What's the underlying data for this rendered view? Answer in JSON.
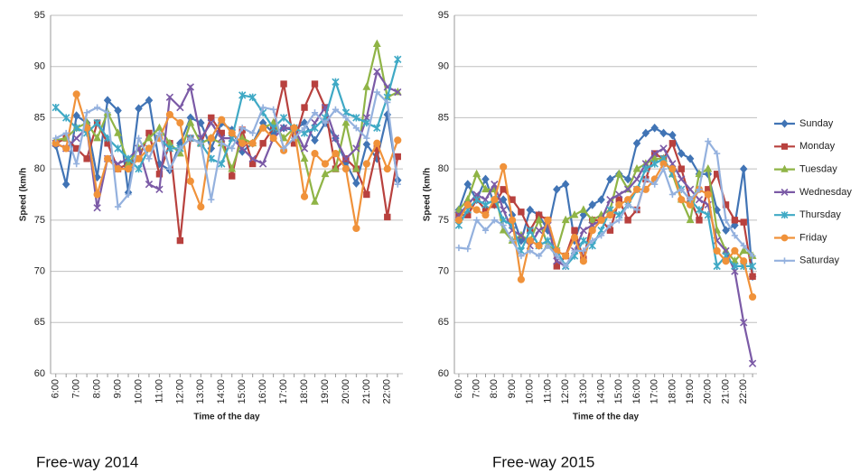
{
  "chart_data": [
    {
      "type": "line",
      "title": "Free-way 2014",
      "x_label": "Time of the day",
      "y_label": "Speed (km/h",
      "categories": [
        "6:00",
        null,
        "7:00",
        null,
        "8:00",
        null,
        "9:00",
        null,
        "10:00",
        null,
        "11:00",
        null,
        "12:00",
        null,
        "13:00",
        null,
        "14:00",
        null,
        "15:00",
        null,
        "16:00",
        null,
        "17:00",
        null,
        "18:00",
        null,
        "19:00",
        null,
        "20:00",
        null,
        "21:00",
        null,
        "22:00",
        null
      ],
      "ylim": [
        60,
        95
      ],
      "yticks": [
        60,
        65,
        70,
        75,
        80,
        85,
        90,
        95
      ],
      "grid": true,
      "series": [
        {
          "color": "#4174b5",
          "marker": "diamond",
          "values": [
            82.3,
            78.5,
            85.2,
            84.5,
            79.2,
            86.7,
            85.7,
            77.7,
            85.9,
            86.7,
            80.5,
            79.9,
            82.5,
            85.0,
            84.5,
            82.0,
            84.5,
            83.8,
            81.7,
            82.5,
            84.5,
            83.5,
            84.0,
            83.8,
            84.5,
            82.8,
            84.5,
            83.0,
            80.6,
            78.6,
            82.4,
            81.0,
            85.3,
            78.9
          ]
        },
        {
          "color": "#b8413e",
          "marker": "square",
          "values": [
            82.5,
            83.0,
            82.0,
            81.0,
            84.5,
            82.5,
            80.0,
            80.5,
            81.0,
            83.5,
            79.5,
            82.5,
            73.0,
            83.0,
            82.5,
            85.0,
            83.5,
            79.3,
            83.8,
            80.5,
            82.5,
            84.0,
            88.3,
            82.5,
            86.0,
            88.3,
            86.0,
            80.0,
            81.0,
            80.0,
            77.5,
            82.0,
            75.3,
            81.2
          ]
        },
        {
          "color": "#8fb446",
          "marker": "triangle",
          "values": [
            82.8,
            83,
            84,
            84.5,
            83,
            85.5,
            83.5,
            80.5,
            82,
            83,
            84,
            82.5,
            81.5,
            84.5,
            82.5,
            83,
            82.5,
            80,
            83,
            82.5,
            84,
            84.5,
            83,
            84,
            81,
            76.8,
            79.5,
            80,
            84.5,
            80,
            88,
            92.2,
            87,
            87.5
          ]
        },
        {
          "color": "#7b5aa6",
          "marker": "x",
          "values": [
            82.5,
            82,
            83,
            84,
            76.2,
            81,
            80.5,
            81,
            82,
            78.5,
            78,
            87,
            86,
            88,
            83,
            84.5,
            83,
            83,
            82,
            81,
            80.5,
            83,
            84,
            84,
            82,
            84.5,
            86,
            83,
            81,
            82,
            85,
            89.5,
            88,
            87.5
          ]
        },
        {
          "color": "#3fa9c5",
          "marker": "star",
          "values": [
            86,
            85,
            84,
            83.5,
            84.5,
            83,
            82,
            81,
            80,
            82,
            83,
            82,
            82,
            83,
            82.5,
            81,
            80.5,
            83,
            87.2,
            87,
            85.5,
            84,
            85,
            84,
            83.5,
            84,
            85,
            88.5,
            85.5,
            85,
            84.5,
            84,
            87,
            90.7
          ]
        },
        {
          "color": "#f0923a",
          "marker": "circle",
          "values": [
            82.5,
            82,
            87.3,
            84,
            77.5,
            81,
            80,
            80,
            81,
            82,
            83,
            85.3,
            84.5,
            78.8,
            76.3,
            83,
            84.8,
            83.5,
            82.5,
            82.5,
            84,
            83,
            81.8,
            84,
            77.3,
            81.5,
            80.5,
            81.5,
            80,
            74.2,
            80.5,
            82.5,
            80,
            82.8
          ]
        },
        {
          "color": "#94b1de",
          "marker": "plus",
          "values": [
            83,
            83.5,
            80.5,
            85.5,
            86,
            85.5,
            76.3,
            77.5,
            83,
            81,
            83.5,
            80,
            82,
            83,
            82.5,
            77,
            82.5,
            82,
            84,
            83.5,
            86,
            85.8,
            82,
            83,
            84,
            85.5,
            84.5,
            85.8,
            85,
            84,
            83,
            87.5,
            86.5,
            78.5
          ]
        }
      ]
    },
    {
      "type": "line",
      "title": "Free-way 2015",
      "x_label": "Time of the day",
      "y_label": "Speed (km/h",
      "categories": [
        "6:00",
        null,
        "7:00",
        null,
        "8:00",
        null,
        "9:00",
        null,
        "10:00",
        null,
        "11:00",
        null,
        "12:00",
        null,
        "13:00",
        null,
        "14:00",
        null,
        "15:00",
        null,
        "16:00",
        null,
        "17:00",
        null,
        "18:00",
        null,
        "19:00",
        null,
        "20:00",
        null,
        "21:00",
        null,
        "22:00",
        null
      ],
      "ylim": [
        60,
        95
      ],
      "yticks": [
        60,
        65,
        70,
        75,
        80,
        85,
        90,
        95
      ],
      "grid": true,
      "legend": "right",
      "series": [
        {
          "name": "Sunday",
          "color": "#4174b5",
          "marker": "diamond",
          "values": [
            76,
            78.5,
            77,
            79,
            76.5,
            77,
            75.5,
            73,
            76,
            75.5,
            74,
            78,
            78.5,
            73,
            75.5,
            76.5,
            77,
            79,
            79.5,
            79,
            82.5,
            83.5,
            84,
            83.5,
            83.3,
            81.5,
            81,
            79.5,
            79.5,
            76,
            74,
            74.5,
            80,
            69.5
          ]
        },
        {
          "name": "Monday",
          "color": "#b8413e",
          "marker": "square",
          "values": [
            75.5,
            75.5,
            77,
            76,
            76.5,
            78,
            77,
            75.8,
            74,
            75.5,
            75,
            70.5,
            71.5,
            74,
            71.2,
            75,
            75,
            74,
            77,
            75,
            76,
            79,
            81.5,
            81,
            82.5,
            80,
            77,
            75,
            78,
            79.5,
            76.5,
            75,
            74.8,
            69.5
          ]
        },
        {
          "name": "Tuesday",
          "color": "#8fb446",
          "marker": "triangle",
          "values": [
            76,
            77,
            79.5,
            78,
            78,
            74,
            73,
            73.5,
            73,
            75,
            72.5,
            72,
            75,
            75.5,
            76,
            75,
            75.5,
            76,
            79.5,
            78,
            80,
            80.5,
            81,
            81,
            79.5,
            77,
            75,
            79.5,
            80,
            74,
            72,
            71,
            72,
            71.5
          ]
        },
        {
          "name": "Wednesday",
          "color": "#7b5aa6",
          "marker": "x",
          "values": [
            75.5,
            76.5,
            77.5,
            77,
            78.5,
            76,
            74,
            73.5,
            72.5,
            74,
            74.5,
            71,
            70.5,
            72,
            74,
            74.5,
            75,
            77,
            77.5,
            78,
            79,
            80.5,
            81.5,
            82,
            80.5,
            79,
            78,
            77,
            76.5,
            73,
            72,
            70,
            65,
            61
          ]
        },
        {
          "name": "Thursday",
          "color": "#3fa9c5",
          "marker": "star",
          "values": [
            74.5,
            76,
            77,
            76.5,
            77,
            75,
            74.5,
            72,
            74,
            72.5,
            73,
            72,
            70.5,
            71.5,
            73,
            72.5,
            74,
            76,
            75.5,
            76.5,
            78,
            80,
            80.5,
            81,
            79.5,
            78,
            77,
            76,
            75.5,
            70.5,
            71.5,
            70.5,
            70.5,
            70.5
          ]
        },
        {
          "name": "Friday",
          "color": "#f0923a",
          "marker": "circle",
          "values": [
            75,
            76.5,
            76,
            75.5,
            77,
            80.2,
            75,
            69.2,
            73,
            72.5,
            75,
            72,
            71.5,
            73.3,
            71,
            74,
            75,
            75.5,
            76.5,
            77,
            78,
            78,
            79,
            80.5,
            80,
            77,
            76.5,
            78,
            77.5,
            72,
            71,
            72,
            71,
            67.5
          ]
        },
        {
          "name": "Saturday",
          "color": "#94b1de",
          "marker": "plus",
          "values": [
            72.3,
            72.2,
            75,
            74,
            75,
            74.5,
            73,
            71.5,
            72,
            71.5,
            72.5,
            71.5,
            70.5,
            72,
            72,
            73,
            73.5,
            74.5,
            75,
            76.5,
            76,
            79,
            78.5,
            80,
            77.5,
            78,
            77,
            78,
            82.7,
            81.5,
            75,
            73.5,
            72.5,
            71.5
          ]
        }
      ]
    }
  ]
}
